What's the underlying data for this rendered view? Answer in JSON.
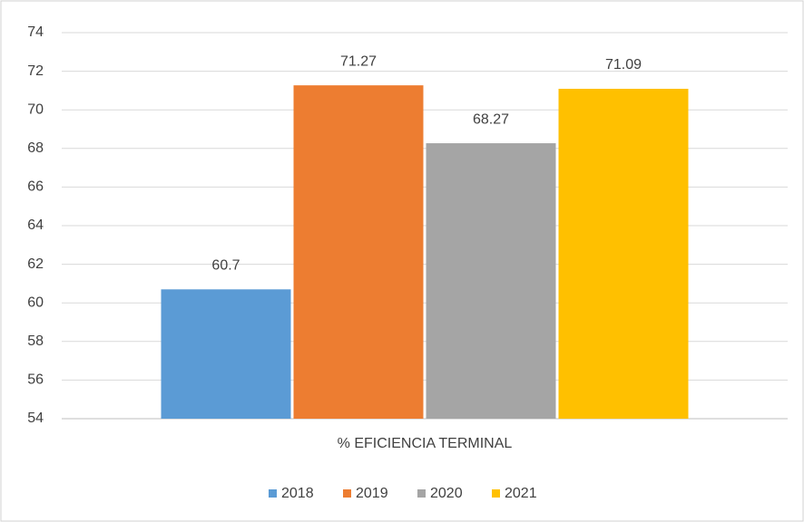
{
  "chart_data": {
    "type": "bar",
    "categories": [
      "% EFICIENCIA TERMINAL"
    ],
    "series": [
      {
        "name": "2018",
        "color": "#5b9bd5",
        "values": [
          60.7
        ]
      },
      {
        "name": "2019",
        "color": "#ed7d31",
        "values": [
          71.27
        ]
      },
      {
        "name": "2020",
        "color": "#a5a5a5",
        "values": [
          68.27
        ]
      },
      {
        "name": "2021",
        "color": "#ffc000",
        "values": [
          71.09
        ]
      }
    ],
    "ylim": [
      54,
      74
    ],
    "yticks": [
      54,
      56,
      58,
      60,
      62,
      64,
      66,
      68,
      70,
      72,
      74
    ],
    "grid": true,
    "legend": "bottom",
    "data_labels": true
  }
}
